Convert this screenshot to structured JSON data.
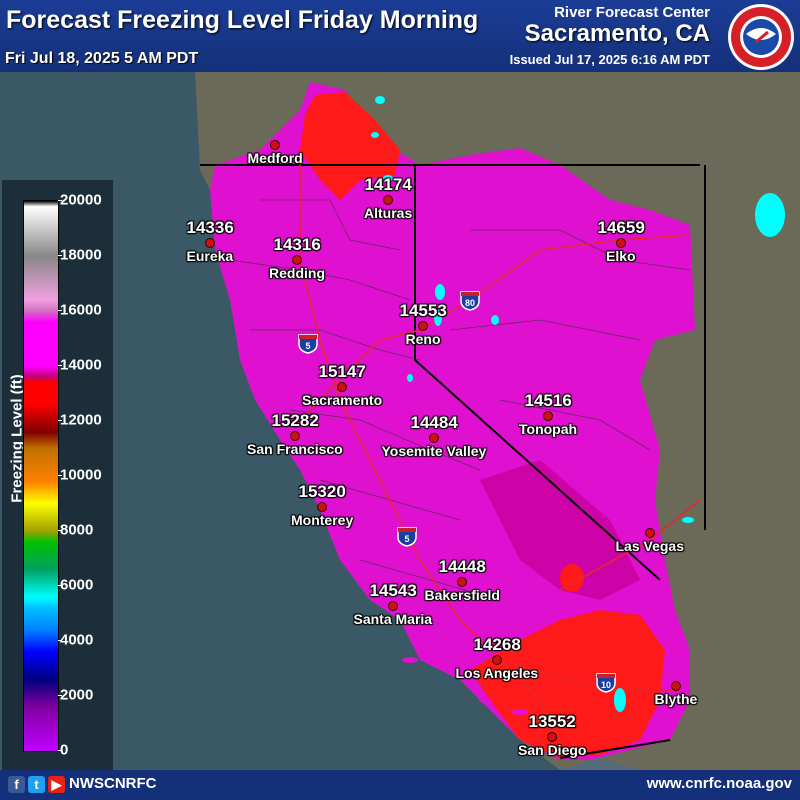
{
  "header": {
    "title": "Forecast Freezing Level Friday Morning",
    "valid_time": "Fri Jul 18, 2025 5 AM PDT",
    "office": "River Forecast Center",
    "city": "Sacramento, CA",
    "issued": "Issued Jul 17, 2025 6:16 AM PDT"
  },
  "legend": {
    "title": "Freezing Level (ft)",
    "ticks": [
      "20000",
      "18000",
      "16000",
      "14000",
      "12000",
      "10000",
      "8000",
      "6000",
      "4000",
      "2000",
      "0"
    ]
  },
  "stations": [
    {
      "name": "Medford",
      "value": ""
    },
    {
      "name": "Alturas",
      "value": "14174"
    },
    {
      "name": "Eureka",
      "value": "14336"
    },
    {
      "name": "Redding",
      "value": "14316"
    },
    {
      "name": "Elko",
      "value": "14659"
    },
    {
      "name": "Reno",
      "value": "14553"
    },
    {
      "name": "Sacramento",
      "value": "15147"
    },
    {
      "name": "San Francisco",
      "value": "15282"
    },
    {
      "name": "Yosemite Valley",
      "value": "14484"
    },
    {
      "name": "Tonopah",
      "value": "14516"
    },
    {
      "name": "Monterey",
      "value": "15320"
    },
    {
      "name": "Las Vegas",
      "value": ""
    },
    {
      "name": "Bakersfield",
      "value": "14448"
    },
    {
      "name": "Santa Maria",
      "value": "14543"
    },
    {
      "name": "Los Angeles",
      "value": "14268"
    },
    {
      "name": "Blythe",
      "value": ""
    },
    {
      "name": "San Diego",
      "value": "13552"
    }
  ],
  "interstates": [
    "80",
    "5",
    "5",
    "10"
  ],
  "footer": {
    "handle": "NWSCNRFC",
    "website": "www.cnrfc.noaa.gov"
  },
  "colors": {
    "header": "#15307a",
    "magenta": "#e010d0",
    "red": "#ff1a1a",
    "water": "#3a5866",
    "land": "#6b6a58"
  }
}
